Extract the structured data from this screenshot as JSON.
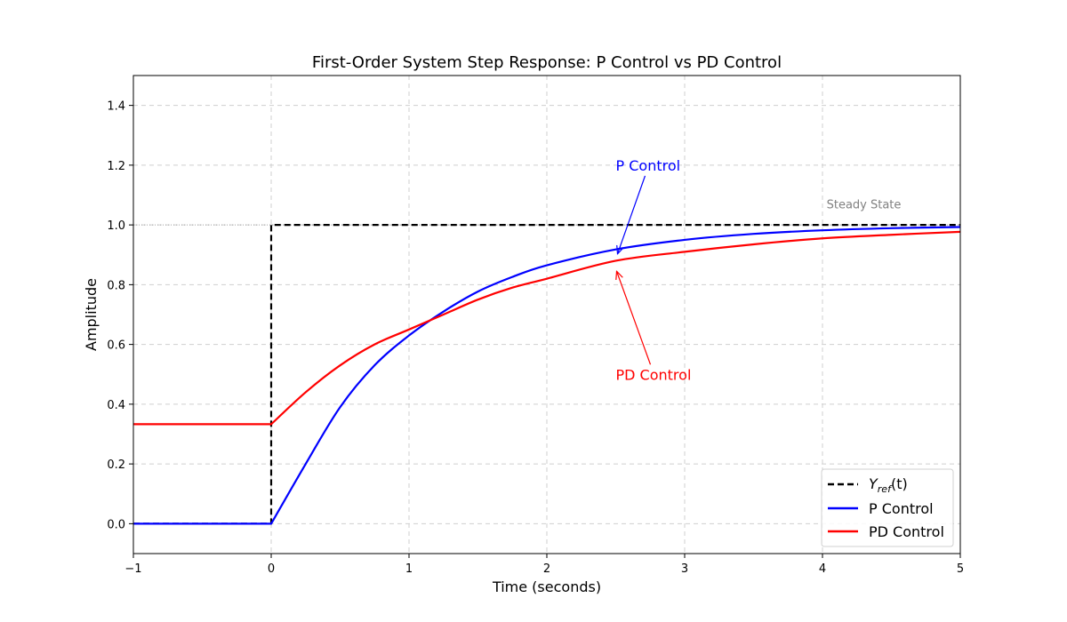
{
  "chart_data": {
    "type": "line",
    "title": "First-Order System Step Response: P Control vs PD Control",
    "xlabel": "Time (seconds)",
    "ylabel": "Amplitude",
    "xlim": [
      -1,
      5
    ],
    "ylim": [
      -0.1,
      1.5
    ],
    "xticks": [
      -1,
      0,
      1,
      2,
      3,
      4,
      5
    ],
    "xtick_labels": [
      "−1",
      "0",
      "1",
      "2",
      "3",
      "4",
      "5"
    ],
    "yticks": [
      0.0,
      0.2,
      0.4,
      0.6,
      0.8,
      1.0,
      1.2,
      1.4
    ],
    "ytick_labels": [
      "0.0",
      "0.2",
      "0.4",
      "0.6",
      "0.8",
      "1.0",
      "1.2",
      "1.4"
    ],
    "grid": true,
    "legend_position": "bottom-right",
    "series": [
      {
        "name": "Y_ref(t)",
        "style": "dashed",
        "color": "#000000",
        "x": [
          -1,
          0,
          0,
          5
        ],
        "y": [
          0,
          0,
          1,
          1
        ]
      },
      {
        "name": "P Control",
        "style": "solid",
        "color": "#0000ff",
        "x": [
          -1,
          0,
          0.25,
          0.5,
          0.75,
          1,
          1.25,
          1.5,
          1.75,
          2,
          2.5,
          3,
          3.5,
          4,
          4.5,
          5
        ],
        "y": [
          0,
          0,
          0.2,
          0.39,
          0.53,
          0.63,
          0.71,
          0.777,
          0.826,
          0.865,
          0.918,
          0.95,
          0.97,
          0.982,
          0.989,
          0.993
        ]
      },
      {
        "name": "PD Control",
        "style": "solid",
        "color": "#ff0000",
        "x": [
          -1,
          0,
          0.25,
          0.5,
          0.75,
          1,
          1.25,
          1.5,
          1.75,
          2,
          2.5,
          3,
          3.5,
          4,
          4.5,
          5
        ],
        "y": [
          0.333,
          0.333,
          0.44,
          0.53,
          0.6,
          0.65,
          0.7,
          0.75,
          0.79,
          0.82,
          0.88,
          0.91,
          0.935,
          0.955,
          0.967,
          0.977
        ]
      }
    ],
    "annotations": [
      {
        "text": "P Control",
        "color": "#0000ff",
        "text_at": [
          2.5,
          1.2
        ],
        "arrow_to": [
          2.5,
          0.918
        ]
      },
      {
        "text": "PD Control",
        "color": "#ff0000",
        "text_at": [
          2.5,
          0.5
        ],
        "arrow_to": [
          2.5,
          0.845
        ]
      }
    ],
    "reference_line": {
      "y": 1.0,
      "label": "Steady State",
      "label_at": [
        4.3,
        1.07
      ]
    },
    "legend": {
      "yref_base": "Y",
      "yref_sub": "ref",
      "yref_suffix": "(t)",
      "p_label": "P Control",
      "pd_label": "PD Control"
    }
  }
}
